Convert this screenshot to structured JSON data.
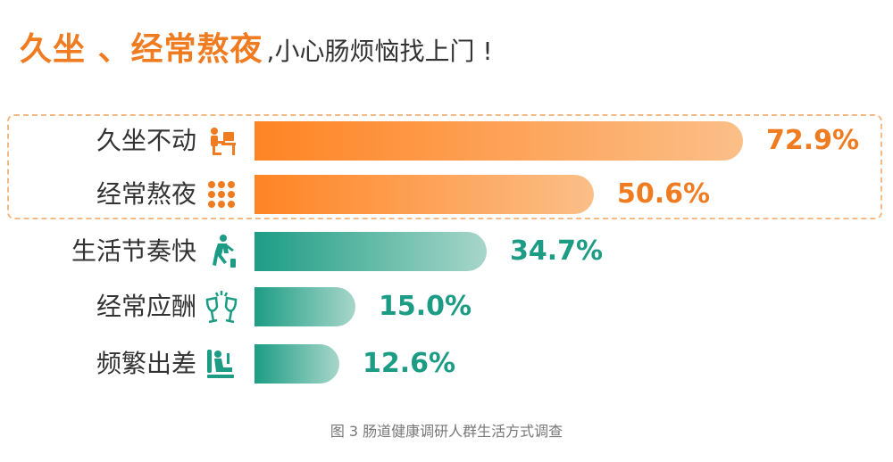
{
  "headline": {
    "strong": "久坐 、经常熬夜",
    "rest": ",小心肠烦恼找上门 !"
  },
  "caption": "图 3 肠道健康调研人群生活方式调查",
  "colors": {
    "orange": "#f07c22",
    "green": "#1c9c84"
  },
  "chart_data": {
    "type": "bar",
    "orientation": "horizontal",
    "categories": [
      "久坐不动",
      "经常熬夜",
      "生活节奏快",
      "经常应酬",
      "频繁出差"
    ],
    "values": [
      72.9,
      50.6,
      34.7,
      15.0,
      12.6
    ],
    "value_labels": [
      "72.9%",
      "50.6%",
      "34.7%",
      "15.0%",
      "12.6%"
    ],
    "icons": [
      "desk-worker-icon",
      "grid-dots-icon",
      "running-person-icon",
      "wine-glasses-icon",
      "traveler-seat-icon"
    ],
    "bar_colors": [
      "orange",
      "orange",
      "green",
      "green",
      "green"
    ],
    "highlighted": [
      true,
      true,
      false,
      false,
      false
    ],
    "unit": "%",
    "xlim": [
      0,
      100
    ]
  }
}
